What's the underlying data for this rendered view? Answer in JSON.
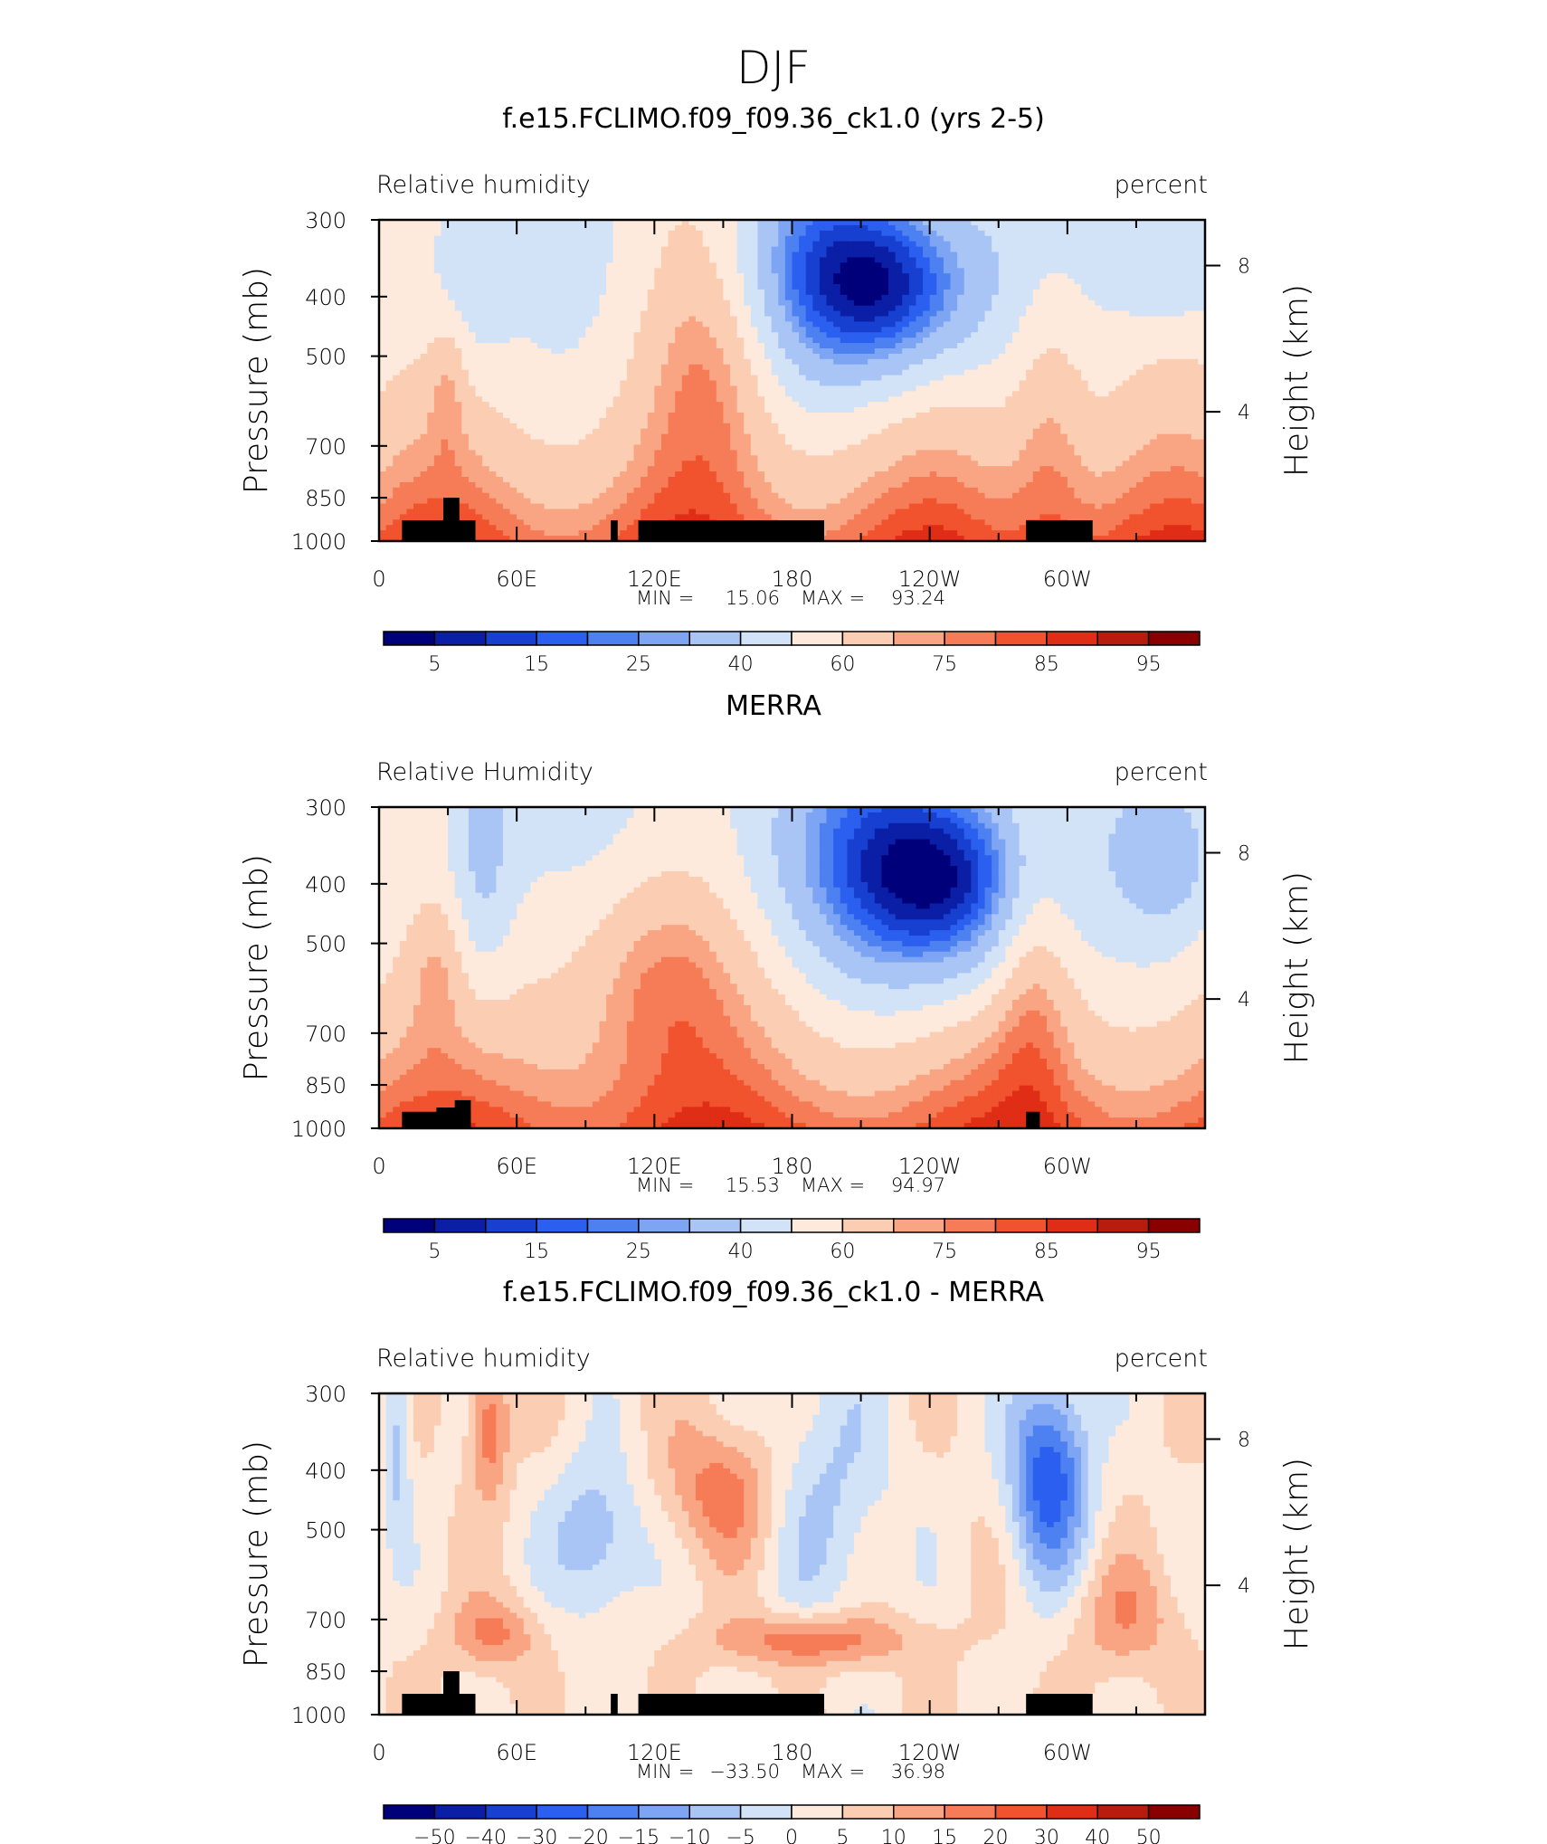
{
  "main_title": "DJF",
  "colorbar_labels_abs": [
    "5",
    "15",
    "25",
    "40",
    "60",
    "75",
    "85",
    "95"
  ],
  "colorbar_labels_diff": [
    "−50",
    "−40",
    "−30",
    "−20",
    "−15",
    "−10",
    "−5",
    "0",
    "5",
    "10",
    "15",
    "20",
    "30",
    "40",
    "50"
  ],
  "colors": {
    "abs_scale": [
      "#00007a",
      "#0a1fa5",
      "#1840d0",
      "#2b5fef",
      "#4d80f0",
      "#7ea5f3",
      "#a9c5f5",
      "#d2e3f7",
      "#fdeadc",
      "#fbcdb2",
      "#f9a583",
      "#f57c56",
      "#f0532e",
      "#e02d15",
      "#b71c0c",
      "#8a0000"
    ],
    "diff_scale": [
      "#00007a",
      "#0a1fa5",
      "#1840d0",
      "#2b5fef",
      "#4d80f0",
      "#7ea5f3",
      "#a9c5f5",
      "#d2e3f7",
      "#fdeadc",
      "#fbcdb2",
      "#f9a583",
      "#f57c56",
      "#f0532e",
      "#e02d15",
      "#b71c0c",
      "#8a0000"
    ],
    "terrain": "#000000"
  },
  "chart_data": [
    {
      "type": "heatmap",
      "title": "f.e15.FCLIMO.f09_f09.36_ck1.0 (yrs 2-5)",
      "left_label": "Relative  humidity",
      "right_label": "percent",
      "ylabel": "Pressure  (mb)",
      "ylabel_right": "Height  (km)",
      "x_ticklabels": [
        "0",
        "60E",
        "120E",
        "180",
        "120W",
        "60W"
      ],
      "y_ticklabels": [
        "300",
        "400",
        "500",
        "700",
        "850",
        "1000"
      ],
      "y_right_ticklabels": [
        "8",
        "4"
      ],
      "stats": {
        "min_label": "MIN =",
        "min": "15.06",
        "max_label": "MAX =",
        "max": "93.24"
      },
      "colorbar": "abs",
      "ylim": [
        1000,
        300
      ],
      "xlim": [
        0,
        360
      ],
      "field": "model"
    },
    {
      "type": "heatmap",
      "title": "MERRA",
      "left_label": "Relative  Humidity",
      "right_label": "percent",
      "ylabel": "Pressure  (mb)",
      "ylabel_right": "Height  (km)",
      "x_ticklabels": [
        "0",
        "60E",
        "120E",
        "180",
        "120W",
        "60W"
      ],
      "y_ticklabels": [
        "300",
        "400",
        "500",
        "700",
        "850",
        "1000"
      ],
      "y_right_ticklabels": [
        "8",
        "4"
      ],
      "stats": {
        "min_label": "MIN =",
        "min": "15.53",
        "max_label": "MAX =",
        "max": "94.97"
      },
      "colorbar": "abs",
      "ylim": [
        1000,
        300
      ],
      "xlim": [
        0,
        360
      ],
      "field": "obs"
    },
    {
      "type": "heatmap",
      "title": "f.e15.FCLIMO.f09_f09.36_ck1.0 - MERRA",
      "left_label": "Relative  humidity",
      "right_label": "percent",
      "ylabel": "Pressure  (mb)",
      "ylabel_right": "Height  (km)",
      "x_ticklabels": [
        "0",
        "60E",
        "120E",
        "180",
        "120W",
        "60W"
      ],
      "y_ticklabels": [
        "300",
        "400",
        "500",
        "700",
        "850",
        "1000"
      ],
      "y_right_ticklabels": [
        "8",
        "4"
      ],
      "stats": {
        "min_label": "MIN =",
        "min": "−33.50",
        "max_label": "MAX =",
        "max": "36.98"
      },
      "colorbar": "diff",
      "ylim": [
        1000,
        300
      ],
      "xlim": [
        0,
        360
      ],
      "field": "diff"
    }
  ]
}
